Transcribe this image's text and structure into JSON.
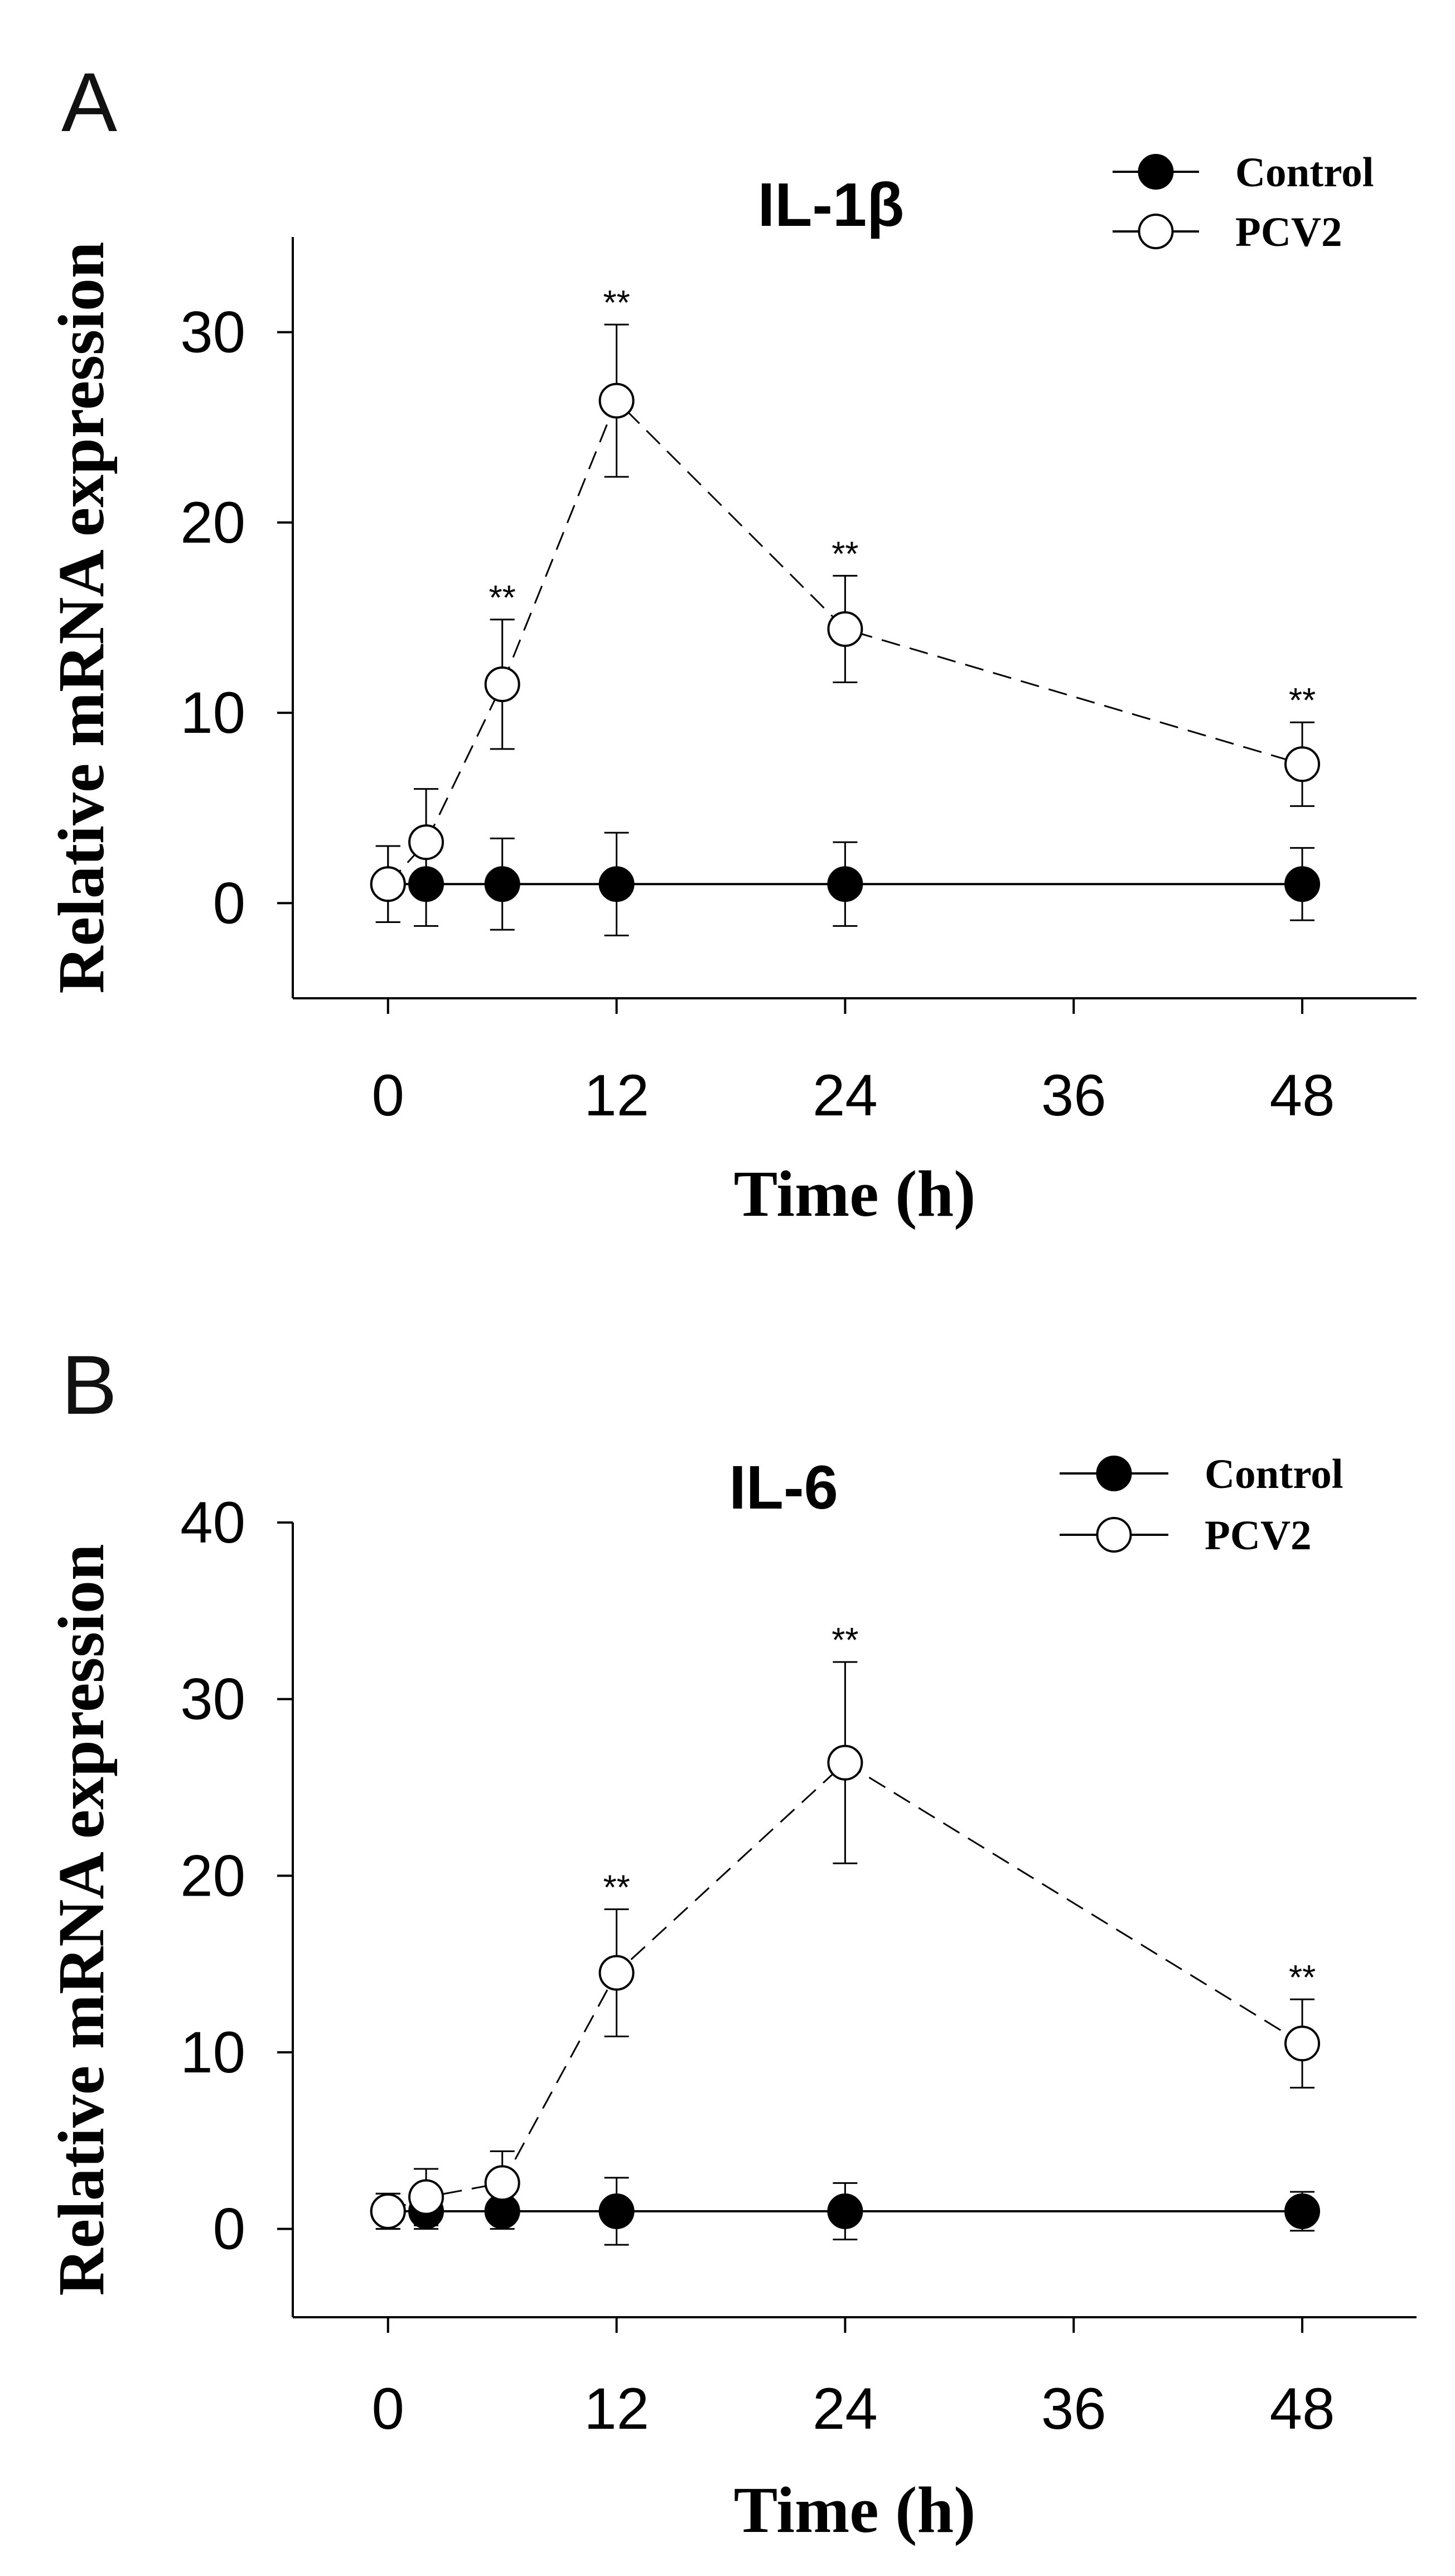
{
  "chart_data": [
    {
      "type": "line",
      "panel": "A",
      "title": "IL-1β",
      "xlabel": "Time (h)",
      "ylabel": "Relative mRNA expression",
      "xlim": [
        -5,
        54
      ],
      "ylim": [
        -5,
        35
      ],
      "xticks": [
        0,
        12,
        24,
        36,
        48
      ],
      "yticks": [
        0,
        10,
        20,
        30
      ],
      "grid": false,
      "legend_position": "top-right",
      "series": [
        {
          "name": "Control",
          "marker": "filled-circle",
          "line": "solid",
          "color": "#000000",
          "x": [
            0,
            2,
            6,
            12,
            24,
            48
          ],
          "y": [
            1.0,
            1.0,
            1.0,
            1.0,
            1.0,
            1.0
          ],
          "err": [
            2.0,
            2.2,
            2.4,
            2.7,
            2.2,
            1.9
          ]
        },
        {
          "name": "PCV2",
          "marker": "open-circle",
          "line": "dashed",
          "color": "#000000",
          "x": [
            0,
            2,
            6,
            12,
            24,
            48
          ],
          "y": [
            1.0,
            3.2,
            11.5,
            26.4,
            14.4,
            7.3
          ],
          "err": [
            2.0,
            2.8,
            3.4,
            4.0,
            2.8,
            2.2
          ],
          "significance": [
            "",
            "",
            "**",
            "**",
            "**",
            "**"
          ]
        }
      ]
    },
    {
      "type": "line",
      "panel": "B",
      "title": "IL-6",
      "xlabel": "Time (h)",
      "ylabel": "Relative mRNA expression",
      "xlim": [
        -5,
        54
      ],
      "ylim": [
        -5,
        40
      ],
      "xticks": [
        0,
        12,
        24,
        36,
        48
      ],
      "yticks": [
        0,
        10,
        20,
        30,
        40
      ],
      "grid": false,
      "legend_position": "top-right",
      "series": [
        {
          "name": "Control",
          "marker": "filled-circle",
          "line": "solid",
          "color": "#000000",
          "x": [
            0,
            2,
            6,
            12,
            24,
            48
          ],
          "y": [
            1.0,
            1.0,
            1.0,
            1.0,
            1.0,
            1.0
          ],
          "err": [
            1.0,
            1.0,
            1.0,
            1.9,
            1.6,
            1.1
          ]
        },
        {
          "name": "PCV2",
          "marker": "open-circle",
          "line": "dashed",
          "color": "#000000",
          "x": [
            0,
            2,
            6,
            12,
            24,
            48
          ],
          "y": [
            1.0,
            1.8,
            2.6,
            14.5,
            26.4,
            10.5
          ],
          "err": [
            1.0,
            1.6,
            1.8,
            3.6,
            5.7,
            2.5
          ],
          "significance": [
            "",
            "",
            "",
            "**",
            "**",
            "**"
          ]
        }
      ]
    }
  ]
}
